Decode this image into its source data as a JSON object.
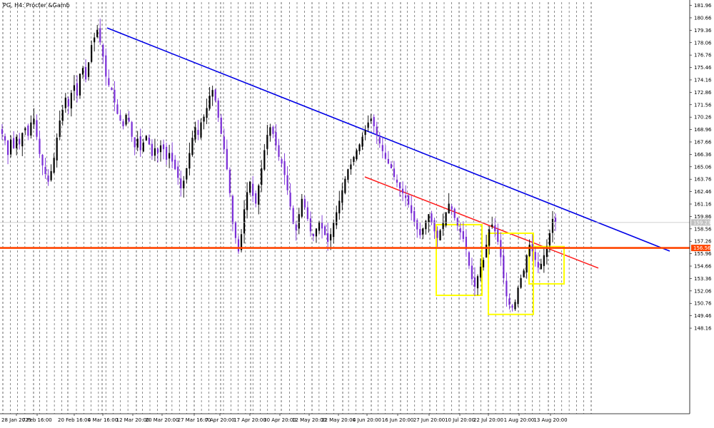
{
  "window": {
    "title": "PG, H4:  Procter &Gamb"
  },
  "colors": {
    "background": "#ffffff",
    "bull_candle": "#000000",
    "bear_candle": "#7a2ed6",
    "blue_trendline": "#0000e6",
    "red_trendline": "#ff1a1a",
    "support_line": "#ff4500",
    "box": "#ffff00",
    "grid": "#000000",
    "current_price_line": "#c0c0c0",
    "price_tag_text": "#ffffff"
  },
  "chart_data": {
    "type": "candlestick",
    "symbol": "PG",
    "timeframe": "H4",
    "ylim": [
      139.2,
      182.3
    ],
    "y_ticks": [
      "181.96",
      "180.66",
      "179.36",
      "178.06",
      "176.76",
      "175.46",
      "174.16",
      "172.86",
      "171.56",
      "170.26",
      "168.96",
      "167.66",
      "166.36",
      "165.06",
      "163.76",
      "162.46",
      "161.16",
      "159.86",
      "158.56",
      "157.26",
      "155.96",
      "154.66",
      "153.36",
      "152.06",
      "150.76",
      "149.46",
      "148.16"
    ],
    "x_tick_labels": [
      "28 Jan 2025",
      "7 Feb 16:00",
      "20 Feb 16:00",
      "4 Mar 16:00",
      "12 Mar 20:00",
      "20 Mar 20:00",
      "27 Mar 16:00",
      "7 Apr 20:00",
      "17 Apr 20:00",
      "30 Apr 20:00",
      "12 May 20:00",
      "22 May 20:00",
      "4 Jun 20:00",
      "16 Jun 20:00",
      "27 Jun 20:00",
      "10 Jul 20:00",
      "22 Jul 20:00",
      "1 Aug 20:00",
      "13 Aug 20:00"
    ],
    "current_price": "159.23",
    "support_level": "156.56",
    "close_path": [
      168.5,
      167.8,
      166.3,
      167.9,
      167.0,
      168.2,
      167.4,
      168.6,
      169.1,
      168.3,
      169.7,
      170.1,
      168.2,
      166.4,
      165.2,
      164.3,
      163.5,
      164.6,
      166.0,
      168.1,
      169.9,
      171.0,
      172.3,
      171.4,
      172.8,
      173.6,
      172.5,
      174.8,
      175.4,
      174.2,
      176.0,
      177.8,
      178.6,
      179.4,
      178.1,
      176.6,
      174.5,
      173.6,
      173.1,
      171.8,
      170.6,
      169.9,
      169.3,
      170.5,
      169.8,
      168.2,
      167.1,
      168.0,
      166.8,
      167.6,
      168.3,
      167.4,
      166.2,
      167.0,
      166.5,
      167.3,
      166.9,
      165.8,
      166.5,
      165.6,
      164.8,
      163.9,
      162.8,
      163.6,
      164.9,
      166.5,
      168.1,
      169.2,
      168.4,
      169.7,
      170.3,
      171.2,
      172.5,
      173.1,
      172.0,
      170.2,
      168.5,
      166.9,
      164.8,
      162.3,
      159.1,
      157.6,
      156.2,
      158.0,
      160.6,
      162.4,
      163.5,
      162.0,
      161.2,
      163.1,
      164.9,
      166.8,
      168.4,
      169.2,
      168.5,
      167.3,
      166.1,
      165.4,
      164.2,
      162.6,
      160.9,
      159.1,
      158.4,
      160.1,
      161.7,
      160.8,
      159.6,
      158.3,
      157.8,
      158.6,
      159.3,
      158.6,
      157.9,
      157.2,
      158.0,
      159.2,
      160.3,
      161.5,
      162.6,
      163.8,
      164.8,
      165.3,
      166.1,
      166.8,
      167.4,
      168.2,
      168.9,
      169.7,
      170.1,
      169.3,
      168.4,
      167.5,
      166.7,
      165.9,
      165.4,
      164.9,
      164.0,
      163.4,
      162.8,
      162.3,
      161.8,
      161.1,
      160.2,
      159.3,
      158.5,
      157.9,
      158.6,
      159.4,
      160.1,
      159.2,
      158.3,
      157.6,
      158.4,
      159.2,
      160.3,
      161.2,
      160.6,
      159.7,
      158.9,
      158.2,
      157.5,
      156.4,
      154.7,
      153.3,
      152.5,
      153.6,
      154.6,
      155.3,
      156.9,
      158.5,
      159.0,
      158.3,
      157.2,
      155.6,
      153.4,
      151.5,
      150.6,
      150.3,
      150.9,
      152.4,
      153.4,
      154.2,
      155.8,
      156.9,
      156.2,
      155.3,
      154.5,
      154.9,
      155.8,
      156.6,
      158.1,
      159.6,
      159.3
    ]
  },
  "overlays": {
    "blue_trendline": {
      "from": [
        "4 Mar 16:00",
        179.6
      ],
      "to": [
        "13 Aug 20:00",
        158.7
      ]
    },
    "red_trendline": {
      "from": [
        "4 Jun 20:00",
        164.0
      ],
      "to": [
        "13 Aug 20:00",
        154.6
      ]
    },
    "yellow_boxes": [
      {
        "price_high": 159.0,
        "price_low": 151.6
      },
      {
        "price_high": 158.1,
        "price_low": 149.6
      },
      {
        "price_high": 156.7,
        "price_low": 152.8
      }
    ]
  }
}
